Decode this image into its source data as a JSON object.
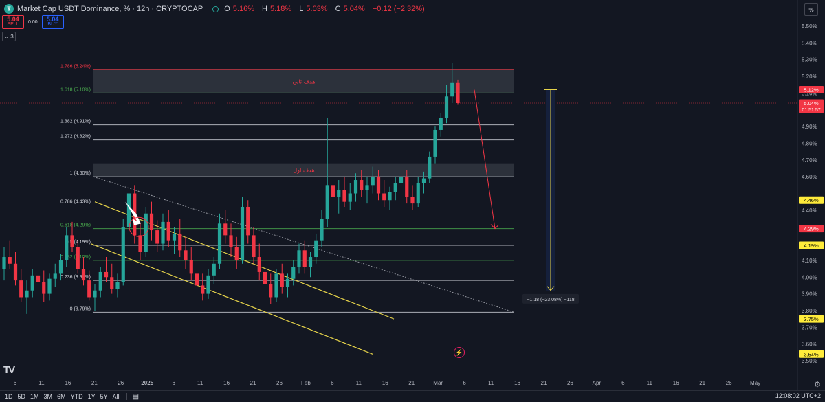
{
  "header": {
    "title": "Market Cap USDT Dominance, %  · 12h · CRYPTOCAP",
    "logo_icon": "tether-logo",
    "ohlc": [
      {
        "k": "O",
        "v": "5.16%"
      },
      {
        "k": "H",
        "v": "5.18%"
      },
      {
        "k": "L",
        "v": "5.03%"
      },
      {
        "k": "C",
        "v": "5.04%"
      },
      {
        "k": "",
        "v": "−0.12 (−2.32%)"
      }
    ],
    "sell_price": "5.04",
    "sell_label": "SELL",
    "spread": "0.00",
    "buy_price": "5.04",
    "buy_label": "BUY",
    "collapse_label": "⌄ 3",
    "percent_button": "%"
  },
  "chart_data": {
    "type": "candlestick",
    "y_axis": {
      "range": [
        3.46,
        5.6
      ],
      "ticks": [
        "5.50%",
        "5.40%",
        "5.30%",
        "5.20%",
        "5.10%",
        "4.90%",
        "4.80%",
        "4.70%",
        "4.60%",
        "4.40%",
        "4.30%",
        "4.10%",
        "4.00%",
        "3.90%",
        "3.80%",
        "3.70%",
        "3.60%",
        "3.50%"
      ]
    },
    "x_axis": {
      "ticks": [
        "6",
        "11",
        "16",
        "21",
        "26",
        "2025",
        "6",
        "11",
        "16",
        "21",
        "26",
        "Feb",
        "6",
        "11",
        "16",
        "21",
        "Mar",
        "6",
        "11",
        "16",
        "21",
        "26",
        "Apr",
        "6",
        "11",
        "16",
        "21",
        "26",
        "May"
      ]
    },
    "price_tags": [
      {
        "label": "5.12%",
        "value": 5.12,
        "color": "#f23645",
        "text_color": "#ffffff"
      },
      {
        "label": "5.04%",
        "sub": "01:51:57",
        "value": 5.04,
        "color": "#f23645",
        "text_color": "#ffffff"
      },
      {
        "label": "4.46%",
        "value": 4.46,
        "color": "#ffeb3b",
        "text_color": "#000000"
      },
      {
        "label": "4.29%",
        "value": 4.29,
        "color": "#f23645",
        "text_color": "#ffffff"
      },
      {
        "label": "4.19%",
        "value": 4.19,
        "color": "#ffeb3b",
        "text_color": "#000000"
      },
      {
        "label": "3.75%",
        "value": 3.75,
        "color": "#ffeb3b",
        "text_color": "#000000"
      },
      {
        "label": "3.54%",
        "value": 3.54,
        "color": "#ffeb3b",
        "text_color": "#000000"
      }
    ],
    "fib_levels": [
      {
        "label": "1.786 (5.24%)",
        "value": 5.24,
        "color": "#f23645"
      },
      {
        "label": "1.618 (5.10%)",
        "value": 5.1,
        "color": "#4caf50"
      },
      {
        "label": "1.382 (4.91%)",
        "value": 4.91,
        "color": "#d1d4dc"
      },
      {
        "label": "1.272 (4.82%)",
        "value": 4.82,
        "color": "#d1d4dc"
      },
      {
        "label": "1 (4.60%)",
        "value": 4.6,
        "color": "#d1d4dc"
      },
      {
        "label": "0.786 (4.43%)",
        "value": 4.43,
        "color": "#d1d4dc"
      },
      {
        "label": "0.618 (4.29%)",
        "value": 4.29,
        "color": "#4caf50"
      },
      {
        "label": "0.5 (4.19%)",
        "value": 4.19,
        "color": "#d1d4dc"
      },
      {
        "label": "0.382 (4.10%)",
        "value": 4.1,
        "color": "#4caf50"
      },
      {
        "label": "0.236 (3.98%)",
        "value": 3.98,
        "color": "#d1d4dc"
      },
      {
        "label": "0 (3.79%)",
        "value": 3.79,
        "color": "#d1d4dc"
      }
    ],
    "target_zones": [
      {
        "label": "هدف ثاني",
        "from": 5.1,
        "to": 5.24
      },
      {
        "label": "هدف اول",
        "from": 4.6,
        "to": 4.68
      }
    ],
    "measure_label": "−1.18 (−23.08%) −118",
    "candles": [
      [
        4.05,
        4.18,
        3.98,
        4.12
      ],
      [
        4.12,
        4.22,
        4.05,
        4.08
      ],
      [
        4.08,
        4.15,
        3.95,
        3.98
      ],
      [
        3.98,
        4.05,
        3.85,
        3.88
      ],
      [
        3.88,
        3.98,
        3.78,
        3.92
      ],
      [
        3.92,
        4.05,
        3.88,
        4.01
      ],
      [
        4.01,
        4.1,
        3.95,
        3.97
      ],
      [
        3.97,
        4.04,
        3.85,
        3.9
      ],
      [
        3.9,
        4.02,
        3.86,
        3.99
      ],
      [
        3.99,
        4.08,
        3.94,
        4.02
      ],
      [
        4.02,
        4.14,
        3.98,
        4.1
      ],
      [
        4.1,
        4.3,
        4.06,
        4.25
      ],
      [
        4.25,
        4.33,
        4.15,
        4.18
      ],
      [
        4.18,
        4.22,
        4.02,
        4.05
      ],
      [
        4.05,
        4.12,
        3.95,
        3.98
      ],
      [
        3.98,
        4.04,
        3.86,
        3.88
      ],
      [
        3.88,
        3.96,
        3.8,
        3.92
      ],
      [
        3.92,
        4.06,
        3.88,
        4.03
      ],
      [
        4.03,
        4.12,
        3.97,
        4.0
      ],
      [
        4.0,
        4.08,
        3.9,
        3.93
      ],
      [
        3.93,
        4.02,
        3.88,
        3.97
      ],
      [
        3.97,
        4.35,
        3.95,
        4.3
      ],
      [
        4.3,
        4.6,
        4.25,
        4.5
      ],
      [
        4.5,
        4.55,
        4.2,
        4.25
      ],
      [
        4.25,
        4.32,
        4.1,
        4.15
      ],
      [
        4.15,
        4.42,
        4.12,
        4.38
      ],
      [
        4.38,
        4.45,
        4.22,
        4.28
      ],
      [
        4.28,
        4.34,
        4.15,
        4.2
      ],
      [
        4.2,
        4.38,
        4.16,
        4.33
      ],
      [
        4.33,
        4.4,
        4.18,
        4.22
      ],
      [
        4.22,
        4.3,
        4.14,
        4.26
      ],
      [
        4.26,
        4.35,
        4.12,
        4.16
      ],
      [
        4.16,
        4.24,
        4.05,
        4.1
      ],
      [
        4.1,
        4.18,
        3.98,
        4.02
      ],
      [
        4.02,
        4.08,
        3.92,
        3.95
      ],
      [
        3.95,
        4.02,
        3.86,
        3.9
      ],
      [
        3.9,
        4.05,
        3.87,
        4.01
      ],
      [
        4.01,
        4.12,
        3.96,
        4.08
      ],
      [
        4.08,
        4.38,
        4.05,
        4.32
      ],
      [
        4.32,
        4.4,
        4.2,
        4.25
      ],
      [
        4.25,
        4.32,
        4.12,
        4.18
      ],
      [
        4.18,
        4.24,
        4.05,
        4.1
      ],
      [
        4.1,
        4.48,
        4.08,
        4.42
      ],
      [
        4.42,
        4.46,
        4.2,
        4.25
      ],
      [
        4.25,
        4.3,
        4.08,
        4.12
      ],
      [
        4.12,
        4.2,
        3.98,
        4.03
      ],
      [
        4.03,
        4.1,
        3.92,
        3.96
      ],
      [
        3.96,
        4.02,
        3.84,
        3.88
      ],
      [
        3.88,
        4.05,
        3.85,
        4.02
      ],
      [
        4.02,
        4.08,
        3.9,
        3.94
      ],
      [
        3.94,
        4.02,
        3.88,
        3.99
      ],
      [
        3.99,
        4.1,
        3.95,
        4.06
      ],
      [
        4.06,
        4.2,
        4.02,
        4.16
      ],
      [
        4.16,
        4.22,
        4.02,
        4.06
      ],
      [
        4.06,
        4.15,
        4.0,
        4.12
      ],
      [
        4.12,
        4.26,
        4.08,
        4.22
      ],
      [
        4.22,
        4.4,
        4.18,
        4.35
      ],
      [
        4.35,
        4.95,
        4.3,
        4.55
      ],
      [
        4.55,
        4.62,
        4.4,
        4.48
      ],
      [
        4.48,
        4.58,
        4.38,
        4.52
      ],
      [
        4.52,
        4.6,
        4.42,
        4.45
      ],
      [
        4.45,
        4.56,
        4.4,
        4.5
      ],
      [
        4.5,
        4.62,
        4.45,
        4.58
      ],
      [
        4.58,
        4.64,
        4.48,
        4.52
      ],
      [
        4.52,
        4.6,
        4.44,
        4.55
      ],
      [
        4.55,
        4.66,
        4.5,
        4.6
      ],
      [
        4.6,
        4.64,
        4.46,
        4.5
      ],
      [
        4.5,
        4.58,
        4.42,
        4.46
      ],
      [
        4.46,
        4.54,
        4.4,
        4.51
      ],
      [
        4.51,
        4.6,
        4.46,
        4.56
      ],
      [
        4.56,
        4.68,
        4.52,
        4.6
      ],
      [
        4.6,
        4.64,
        4.44,
        4.48
      ],
      [
        4.48,
        4.55,
        4.4,
        4.44
      ],
      [
        4.44,
        4.6,
        4.42,
        4.56
      ],
      [
        4.56,
        4.63,
        4.5,
        4.59
      ],
      [
        4.59,
        4.75,
        4.56,
        4.72
      ],
      [
        4.72,
        4.9,
        4.68,
        4.88
      ],
      [
        4.88,
        4.98,
        4.84,
        4.95
      ],
      [
        4.95,
        5.15,
        4.92,
        5.08
      ],
      [
        5.08,
        5.28,
        5.04,
        5.16
      ],
      [
        5.16,
        5.18,
        5.03,
        5.04
      ]
    ]
  },
  "footer": {
    "timeframes": [
      "1D",
      "5D",
      "1M",
      "3M",
      "6M",
      "YTD",
      "1Y",
      "5Y",
      "All"
    ],
    "clock": "12:08:02 UTC+2",
    "calendar_icon": "calendar-range-icon",
    "settings_icon": "gear-icon",
    "tv_logo": "TV",
    "bolt_icon": "lightning-icon"
  }
}
